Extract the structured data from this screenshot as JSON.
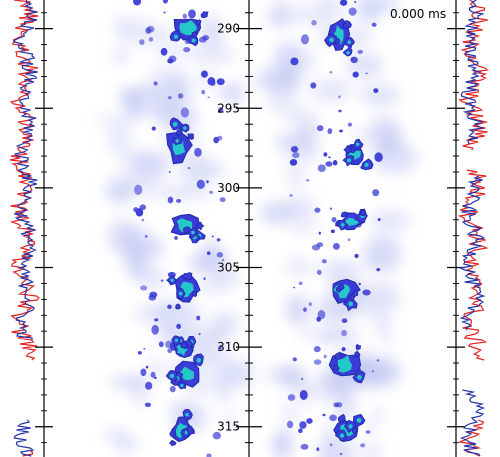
{
  "timestamp": "0.000 ms",
  "axis": {
    "labels": [
      "290",
      "295",
      "300",
      "305",
      "310",
      "315"
    ],
    "ticks": [
      290,
      295,
      300,
      305,
      310,
      315
    ],
    "range": [
      288.2,
      316.9
    ]
  },
  "colors": {
    "trace_red": "#e32222",
    "trace_blue": "#2233aa",
    "blob_outer": "#3b3bd6",
    "blob_core": "#24c8c8",
    "haze": "#b8bff0"
  },
  "panels": [
    "left-column",
    "right-column"
  ]
}
